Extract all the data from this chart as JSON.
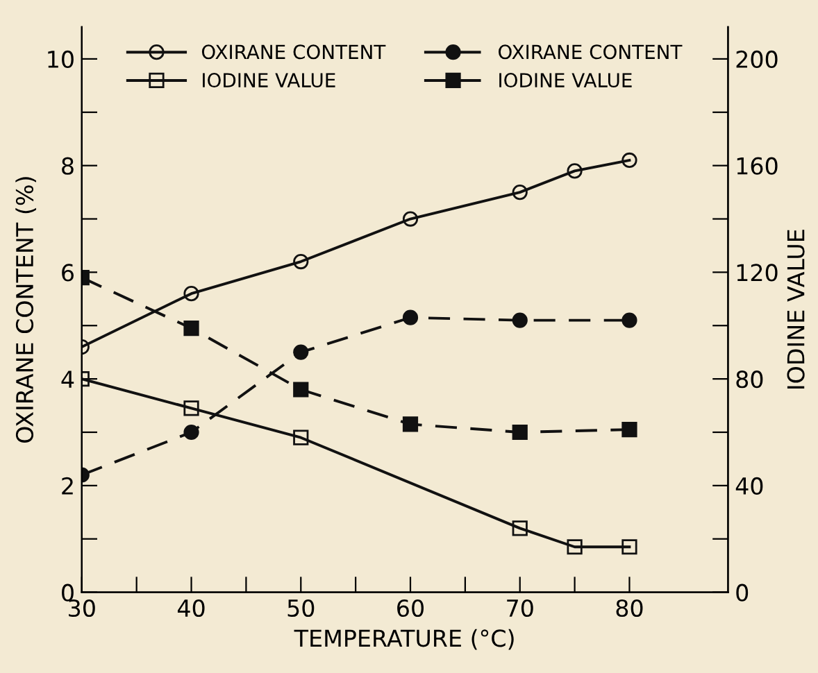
{
  "chart_data": {
    "type": "line",
    "xlabel": "TEMPERATURE (°C)",
    "ylabel": "OXIRANE CONTENT (%)",
    "y2label": "IODINE VALUE",
    "xlim": [
      30,
      89
    ],
    "xticks": [
      30,
      {
        "value": 35,
        "label": null
      },
      40,
      {
        "value": 45,
        "label": null
      },
      50,
      {
        "value": 55,
        "label": null
      },
      60,
      {
        "value": 65,
        "label": null
      },
      70,
      {
        "value": 75,
        "label": null
      },
      80
    ],
    "ylim": [
      0,
      10.6
    ],
    "yticks": [
      0,
      {
        "value": 1,
        "label": null
      },
      2,
      {
        "value": 3,
        "label": null
      },
      4,
      {
        "value": 5,
        "label": null
      },
      6,
      {
        "value": 7,
        "label": null
      },
      8,
      {
        "value": 9,
        "label": null
      },
      10
    ],
    "y2lim": [
      0,
      212
    ],
    "y2ticks": [
      0,
      {
        "value": 20,
        "label": null
      },
      40,
      {
        "value": 60,
        "label": null
      },
      80,
      {
        "value": 100,
        "label": null
      },
      120,
      {
        "value": 140,
        "label": null
      },
      160,
      {
        "value": 180,
        "label": null
      },
      200
    ],
    "legend": "top",
    "grid": false,
    "series": [
      {
        "name": "OXIRANE CONTENT",
        "color": "#111111",
        "x": [
          30,
          40,
          50,
          60,
          70,
          75,
          80
        ],
        "values": [
          4.6,
          5.6,
          6.2,
          7.0,
          7.5,
          7.9,
          8.1
        ],
        "marker": "circle",
        "line_style": "solid"
      },
      {
        "name": "IODINE VALUE",
        "color": "#111111",
        "axis": "y2",
        "x": [
          30,
          40,
          50,
          70,
          75,
          80
        ],
        "values": [
          80,
          69,
          58,
          24,
          17,
          17
        ],
        "marker": "square",
        "line_style": "solid"
      },
      {
        "name": "OXIRANE CONTENT",
        "color": "#111111",
        "x": [
          30,
          40,
          50,
          60,
          70,
          80
        ],
        "values": [
          2.2,
          3.0,
          4.5,
          5.15,
          5.1,
          5.1
        ],
        "marker": "circle",
        "line_style": "dashed"
      },
      {
        "name": "IODINE VALUE",
        "color": "#111111",
        "axis": "y2",
        "x": [
          30,
          40,
          50,
          60,
          70,
          80
        ],
        "values": [
          118,
          99,
          76,
          63,
          60,
          61
        ],
        "marker": "square",
        "line_style": "dashed"
      }
    ]
  }
}
